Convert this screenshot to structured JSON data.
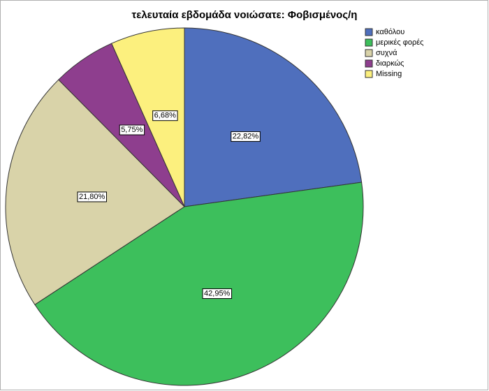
{
  "chart_data": {
    "type": "pie",
    "title": "τελευταία εβδομάδα νοιώσατε: Φοβισμένος/η",
    "categories": [
      "καθόλου",
      "μερικές φορές",
      "συχνά",
      "διαρκώς",
      "Missing"
    ],
    "values": [
      22.82,
      42.95,
      21.8,
      5.75,
      6.68
    ],
    "value_labels": [
      "22,82%",
      "42,95%",
      "21,80%",
      "5,75%",
      "6,68%"
    ],
    "colors": [
      "#4f6fbd",
      "#3dbf5c",
      "#d9d3a9",
      "#8e3e8e",
      "#fcf07e"
    ],
    "legend": "top-right"
  }
}
